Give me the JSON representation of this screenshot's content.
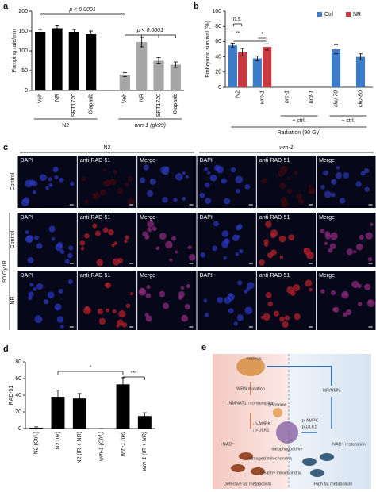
{
  "chart_data": [
    {
      "type": "bar",
      "letter": "a",
      "ylabel": "Pumping rate/min",
      "categories": [
        "Veh",
        "NR",
        "SRT1720",
        "Olaparib",
        "Veh",
        "NR",
        "SRT1720",
        "Olaparib"
      ],
      "values": [
        148,
        157,
        148,
        142,
        40,
        122,
        75,
        65
      ],
      "errors": [
        6,
        6,
        6,
        8,
        5,
        12,
        8,
        7
      ],
      "colors": [
        "#000000",
        "#000000",
        "#000000",
        "#000000",
        "#a6a6a6",
        "#a6a6a6",
        "#a6a6a6",
        "#a6a6a6"
      ],
      "groups": [
        "N2",
        "wrn-1 (gk99)"
      ],
      "annotations": [
        "p < 0.0001",
        "p < 0.0001"
      ],
      "ylim": [
        0,
        200
      ],
      "yticks": [
        0,
        50,
        100,
        150,
        200
      ]
    },
    {
      "type": "grouped-bar",
      "letter": "b",
      "ylabel": "Embryonic survival (%)",
      "categories": [
        "N2",
        "wrn-1",
        "brc-1",
        "brd-1",
        "cku-70",
        "cku-80"
      ],
      "series": [
        {
          "name": "Ctrl",
          "color": "#3d7cc9",
          "values": [
            55,
            38,
            null,
            null,
            50,
            40
          ],
          "errors": [
            3,
            3,
            null,
            null,
            6,
            4
          ]
        },
        {
          "name": "NR",
          "color": "#c9393f",
          "values": [
            46,
            53,
            null,
            null,
            null,
            null
          ],
          "errors": [
            5,
            4,
            null,
            null,
            null,
            null
          ]
        }
      ],
      "groups": [
        "+ ctrl.",
        "− ctrl."
      ],
      "xlabel": "Radiation (90 Gy)",
      "annotations": [
        "n.s.",
        "**",
        "*"
      ],
      "ylim": [
        0,
        100
      ],
      "yticks": [
        0,
        20,
        40,
        60,
        80,
        100
      ],
      "legend": "top-right"
    },
    {
      "type": "bar",
      "letter": "d",
      "ylabel": "RAD-51",
      "categories": [
        "N2 (Ctrl.)",
        "N2 (IR)",
        "N2 (IR + NR)",
        "wrn-1 (Ctrl.)",
        "wrn-1 (IR)",
        "wrn-1 (IR + NR)"
      ],
      "values": [
        1,
        38,
        36,
        0,
        53,
        15
      ],
      "errors": [
        1,
        8,
        6,
        0,
        8,
        4
      ],
      "colors": [
        "#000000",
        "#000000",
        "#000000",
        "#000000",
        "#000000",
        "#000000"
      ],
      "annotations": [
        "*",
        "***"
      ],
      "ylim": [
        0,
        80
      ],
      "yticks": [
        0,
        20,
        40,
        60,
        80
      ]
    }
  ],
  "microscopy": {
    "letter": "c",
    "columns": [
      "N2",
      "wrn-1"
    ],
    "panels": [
      "DAPI",
      "anti-RAD-51",
      "Merge"
    ],
    "rows": [
      "Control",
      "Control",
      "NR"
    ],
    "side_label": "90 Gy IR"
  },
  "diagram": {
    "letter": "e",
    "nucleus": "nucleus",
    "mutation": "WRN mutation",
    "consumption": "↓NMNAT1 ↑consumption",
    "treatment": "NR/NMN",
    "lysosome": "lysosome",
    "left_ampk": "↓p-AMPK",
    "left_ulk": "↓p-ULK1",
    "right_ampk": "↑p-AMPK",
    "right_ulk": "↑p-ULK1",
    "mitophagosome": "mitophagosome",
    "left_nad": "↑NAD⁺",
    "right_nad": "NAD⁺ restoration",
    "damaged": "damaged mitochondria",
    "healthy": "healthy mitochondria",
    "left_outcome": "Defective fat metabolism",
    "right_outcome": "High fat metabolism"
  }
}
